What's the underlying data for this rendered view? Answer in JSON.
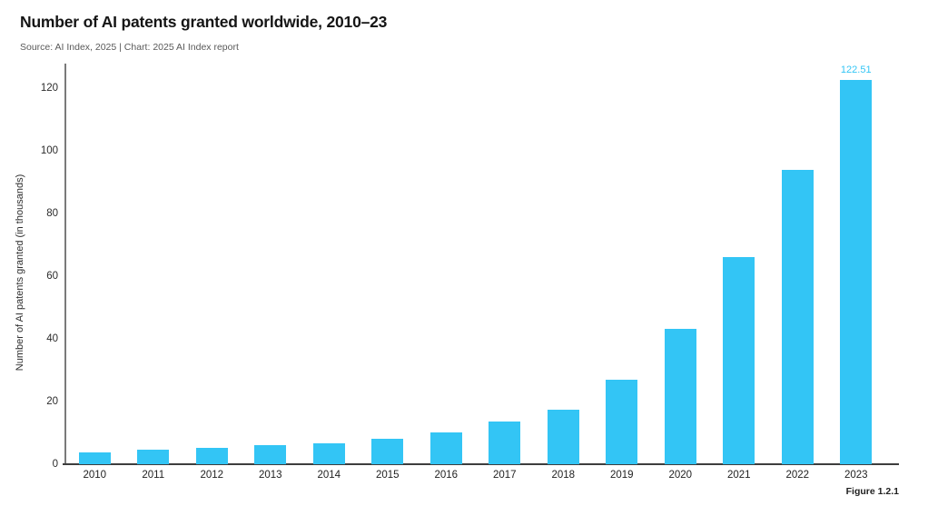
{
  "header": {
    "title": "Number of AI patents granted worldwide, 2010–23",
    "source_line": "Source: AI Index, 2025 | Chart: 2025 AI Index report"
  },
  "footer": {
    "figure_label": "Figure 1.2.1"
  },
  "chart_data": {
    "type": "bar",
    "title": "Number of AI patents granted worldwide, 2010–23",
    "categories": [
      "2010",
      "2011",
      "2012",
      "2013",
      "2014",
      "2015",
      "2016",
      "2017",
      "2018",
      "2019",
      "2020",
      "2021",
      "2022",
      "2023"
    ],
    "values": [
      3.9,
      4.7,
      5.3,
      6.1,
      6.8,
      8.0,
      10.2,
      13.5,
      17.4,
      27.0,
      43.3,
      66.0,
      94.0,
      122.51
    ],
    "xlabel": "",
    "ylabel": "Number of AI patents granted (in thousands)",
    "yticks": [
      0,
      20,
      40,
      60,
      80,
      100,
      120
    ],
    "ylim": [
      0,
      120
    ],
    "grid": false,
    "legend": "none",
    "bar_color": "#33C5F5",
    "value_label": {
      "category": "2023",
      "text": "122.51"
    }
  }
}
